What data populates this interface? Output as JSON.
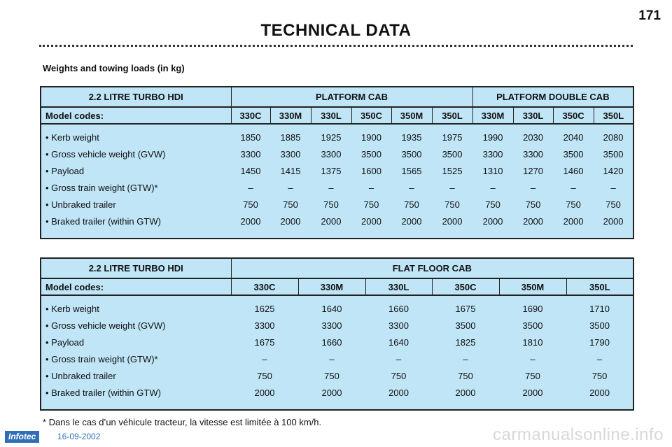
{
  "page_number": "171",
  "title": "TECHNICAL DATA",
  "subtitle": "Weights and towing loads (in kg)",
  "table1": {
    "engine": "2.2 LITRE TURBO HDI",
    "group1": "PLATFORM CAB",
    "group2": "PLATFORM DOUBLE CAB",
    "codes_label": "Model codes:",
    "codes": [
      "330C",
      "330M",
      "330L",
      "350C",
      "350M",
      "350L",
      "330M",
      "330L",
      "350C",
      "350L"
    ],
    "rows": [
      {
        "label": "•  Kerb weight",
        "values": [
          "1850",
          "1885",
          "1925",
          "1900",
          "1935",
          "1975",
          "1990",
          "2030",
          "2040",
          "2080"
        ]
      },
      {
        "label": "•  Gross vehicle weight (GVW)",
        "values": [
          "3300",
          "3300",
          "3300",
          "3500",
          "3500",
          "3500",
          "3300",
          "3300",
          "3500",
          "3500"
        ]
      },
      {
        "label": "•  Payload",
        "values": [
          "1450",
          "1415",
          "1375",
          "1600",
          "1565",
          "1525",
          "1310",
          "1270",
          "1460",
          "1420"
        ]
      },
      {
        "label": "•  Gross train weight (GTW)*",
        "values": [
          "–",
          "–",
          "–",
          "–",
          "–",
          "–",
          "–",
          "–",
          "–",
          "–"
        ]
      },
      {
        "label": "•  Unbraked trailer",
        "values": [
          "750",
          "750",
          "750",
          "750",
          "750",
          "750",
          "750",
          "750",
          "750",
          "750"
        ]
      },
      {
        "label": "•  Braked trailer (within GTW)",
        "values": [
          "2000",
          "2000",
          "2000",
          "2000",
          "2000",
          "2000",
          "2000",
          "2000",
          "2000",
          "2000"
        ]
      }
    ]
  },
  "table2": {
    "engine": "2.2 LITRE TURBO HDI",
    "group1": "FLAT FLOOR CAB",
    "codes_label": "Model codes:",
    "codes": [
      "330C",
      "330M",
      "330L",
      "350C",
      "350M",
      "350L"
    ],
    "rows": [
      {
        "label": "• Kerb weight",
        "values": [
          "1625",
          "1640",
          "1660",
          "1675",
          "1690",
          "1710"
        ]
      },
      {
        "label": "• Gross vehicle weight (GVW)",
        "values": [
          "3300",
          "3300",
          "3300",
          "3500",
          "3500",
          "3500"
        ]
      },
      {
        "label": "• Payload",
        "values": [
          "1675",
          "1660",
          "1640",
          "1825",
          "1810",
          "1790"
        ]
      },
      {
        "label": "• Gross train weight (GTW)*",
        "values": [
          "–",
          "–",
          "–",
          "–",
          "–",
          "–"
        ]
      },
      {
        "label": "• Unbraked trailer",
        "values": [
          "750",
          "750",
          "750",
          "750",
          "750",
          "750"
        ]
      },
      {
        "label": "• Braked trailer (within GTW)",
        "values": [
          "2000",
          "2000",
          "2000",
          "2000",
          "2000",
          "2000"
        ]
      }
    ]
  },
  "footnote": "* Dans le cas d’un véhicule tracteur, la vitesse est limitée à 100 km/h.",
  "footer": {
    "brand": "Infotec",
    "date": "16-09-2002"
  },
  "watermark": "carmanualsonline.info"
}
